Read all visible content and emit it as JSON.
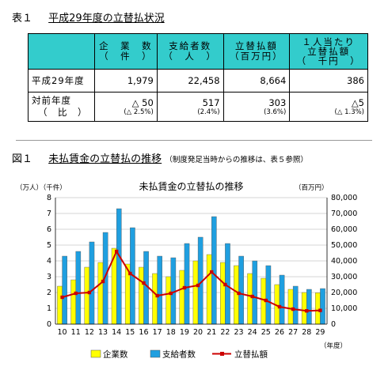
{
  "table1": {
    "label": "表１",
    "title": "平成29年度の立替払状況",
    "columns": [
      [
        "企　業　数",
        "（　件　）"
      ],
      [
        "支給者数",
        "（　人　）"
      ],
      [
        "立替払額",
        "（百万円）"
      ],
      [
        "１人当たり",
        "立替払額",
        "（　千円　）"
      ]
    ],
    "rows": [
      {
        "label": "平成29年度",
        "values": [
          "1,979",
          "22,458",
          "8,664",
          "386"
        ],
        "subs": [
          "",
          "",
          "",
          ""
        ]
      },
      {
        "label": "対前年度",
        "label2": "（　比　）",
        "values": [
          "△ 50",
          "517",
          "303",
          "△5"
        ],
        "subs": [
          "(△ 2.5%)",
          "(2.4%)",
          "(3.6%)",
          "(△ 1.3%)"
        ]
      }
    ]
  },
  "figure1": {
    "label": "図１",
    "title": "未払賃金の立替払の推移",
    "subtitle": "（制度発足当時からの推移は、表５参照）"
  },
  "chart_data": {
    "type": "bar",
    "title": "未払賃金の立替払の推移",
    "left_axis_label": "（万人）（千件）",
    "right_axis_label": "（百万円）",
    "x_axis_label": "（年度）",
    "categories": [
      "10",
      "11",
      "12",
      "13",
      "14",
      "15",
      "16",
      "17",
      "18",
      "19",
      "20",
      "21",
      "22",
      "23",
      "24",
      "25",
      "26",
      "27",
      "28",
      "29"
    ],
    "left_ylim": [
      0,
      8
    ],
    "left_ticks": [
      "0",
      "1",
      "2",
      "3",
      "4",
      "5",
      "6",
      "7",
      "8"
    ],
    "right_ylim": [
      0,
      80000
    ],
    "right_ticks": [
      "0",
      "10,000",
      "20,000",
      "30,000",
      "40,000",
      "50,000",
      "60,000",
      "70,000",
      "80,000"
    ],
    "grid": true,
    "legend_position": "bottom",
    "series": [
      {
        "name": "企業数",
        "kind": "bar",
        "axis": "left",
        "color": "#ffff00",
        "values": [
          2.4,
          2.8,
          3.6,
          3.9,
          4.8,
          3.8,
          3.6,
          3.2,
          3.0,
          3.4,
          4.0,
          4.4,
          3.9,
          3.7,
          3.2,
          2.9,
          2.5,
          2.2,
          2.0,
          1.98
        ]
      },
      {
        "name": "支給者数",
        "kind": "bar",
        "axis": "left",
        "color": "#1f9fe0",
        "values": [
          4.3,
          4.6,
          5.2,
          5.8,
          7.3,
          6.1,
          4.6,
          4.3,
          4.2,
          5.1,
          5.5,
          6.8,
          5.1,
          4.3,
          4.0,
          3.7,
          3.1,
          2.4,
          2.2,
          2.25
        ]
      },
      {
        "name": "立替払額",
        "kind": "line",
        "axis": "right",
        "color": "#cc0000",
        "values": [
          17000,
          19500,
          20000,
          27000,
          46000,
          32000,
          26000,
          18000,
          19500,
          23000,
          24500,
          33000,
          25000,
          19500,
          17500,
          15000,
          11000,
          9500,
          8400,
          8700
        ]
      }
    ]
  }
}
